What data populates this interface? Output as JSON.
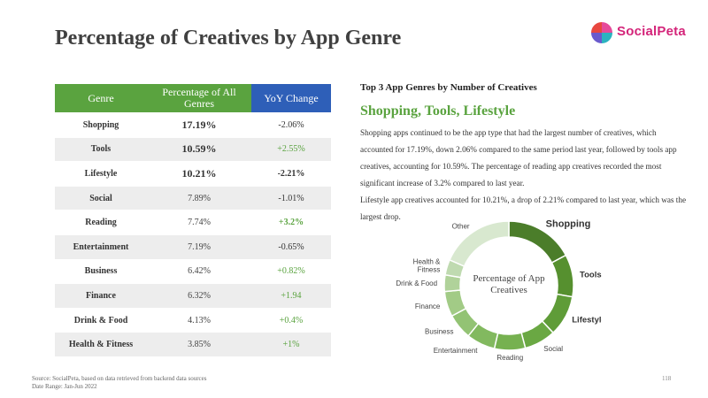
{
  "title": "Percentage of Creatives by App Genre",
  "logo": {
    "text": "SocialPeta"
  },
  "table": {
    "headers": [
      "Genre",
      "Percentage of All Genres",
      "YoY Change"
    ],
    "rows": [
      {
        "genre": "Shopping",
        "pct": "17.19%",
        "yoy": "-2.06%"
      },
      {
        "genre": "Tools",
        "pct": "10.59%",
        "yoy": "+2.55%"
      },
      {
        "genre": "Lifestyle",
        "pct": "10.21%",
        "yoy": "-2.21%"
      },
      {
        "genre": "Social",
        "pct": "7.89%",
        "yoy": "-1.01%"
      },
      {
        "genre": "Reading",
        "pct": "7.74%",
        "yoy": "+3.2%"
      },
      {
        "genre": "Entertainment",
        "pct": "7.19%",
        "yoy": "-0.65%"
      },
      {
        "genre": "Business",
        "pct": "6.42%",
        "yoy": "+0.82%"
      },
      {
        "genre": "Finance",
        "pct": "6.32%",
        "yoy": "+1.94"
      },
      {
        "genre": "Drink & Food",
        "pct": "4.13%",
        "yoy": "+0.4%"
      },
      {
        "genre": "Health & Fitness",
        "pct": "3.85%",
        "yoy": "+1%"
      }
    ]
  },
  "right": {
    "subtitle": "Top 3 App Genres by Number of Creatives",
    "highlight": "Shopping, Tools, Lifestyle",
    "paragraph1": "Shopping apps continued to be the app type that had the largest number of creatives, which accounted for 17.19%, down 2.06% compared to the same period last year, followed by tools app creatives, accounting for 10.59%. The percentage of reading app creatives recorded the most significant increase of 3.2% compared to last year.",
    "paragraph2": "Lifestyle app creatives accounted for 10.21%, a drop of 2.21% compared to last year, which was the largest drop."
  },
  "chart_data": {
    "type": "pie",
    "title": "Percentage of App Creatives",
    "categories": [
      "Shopping",
      "Tools",
      "Lifestyle",
      "Social",
      "Reading",
      "Entertainment",
      "Business",
      "Finance",
      "Drink & Food",
      "Health & Fitness",
      "Other"
    ],
    "values": [
      17.19,
      10.59,
      10.21,
      7.89,
      7.74,
      7.19,
      6.42,
      6.32,
      4.13,
      3.85,
      18.47
    ],
    "colors": [
      "#4b7d2a",
      "#56902f",
      "#5f9c38",
      "#6aa843",
      "#76b150",
      "#82b95f",
      "#93c374",
      "#a2cb86",
      "#b0d29a",
      "#bfdab0",
      "#d8e8cf"
    ],
    "legend": "none"
  },
  "footer": {
    "source": "Source: SocialPeta, based on data retrieved from backend data sources",
    "range": "Date Range: Jan-Jun 2022",
    "page": "118"
  }
}
